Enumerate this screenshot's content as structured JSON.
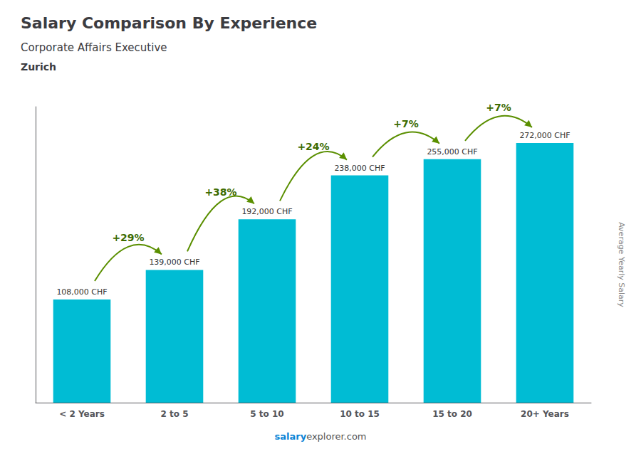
{
  "chart_data": {
    "type": "bar",
    "title": "Salary Comparison By Experience",
    "subtitle": "Corporate Affairs Executive",
    "city": "Zurich",
    "watermark": "Average Yearly Salary",
    "footer": [
      "salary",
      "explorer.com"
    ],
    "categories": [
      "< 2 Years",
      "2 to 5",
      "5 to 10",
      "10 to 15",
      "15 to 20",
      "20+ Years"
    ],
    "values": [
      108000,
      139000,
      192000,
      238000,
      255000,
      272000
    ],
    "value_labels": [
      "108,000 CHF",
      "139,000 CHF",
      "192,000 CHF",
      "238,000 CHF",
      "255,000 CHF",
      "272,000 CHF"
    ],
    "annotations": [
      "+29%",
      "+38%",
      "+24%",
      "+7%",
      "+7%"
    ],
    "color": "#00bcd4",
    "ylim": [
      0,
      310000
    ],
    "data_labels": true,
    "tick_labels": "x",
    "grid": false
  }
}
